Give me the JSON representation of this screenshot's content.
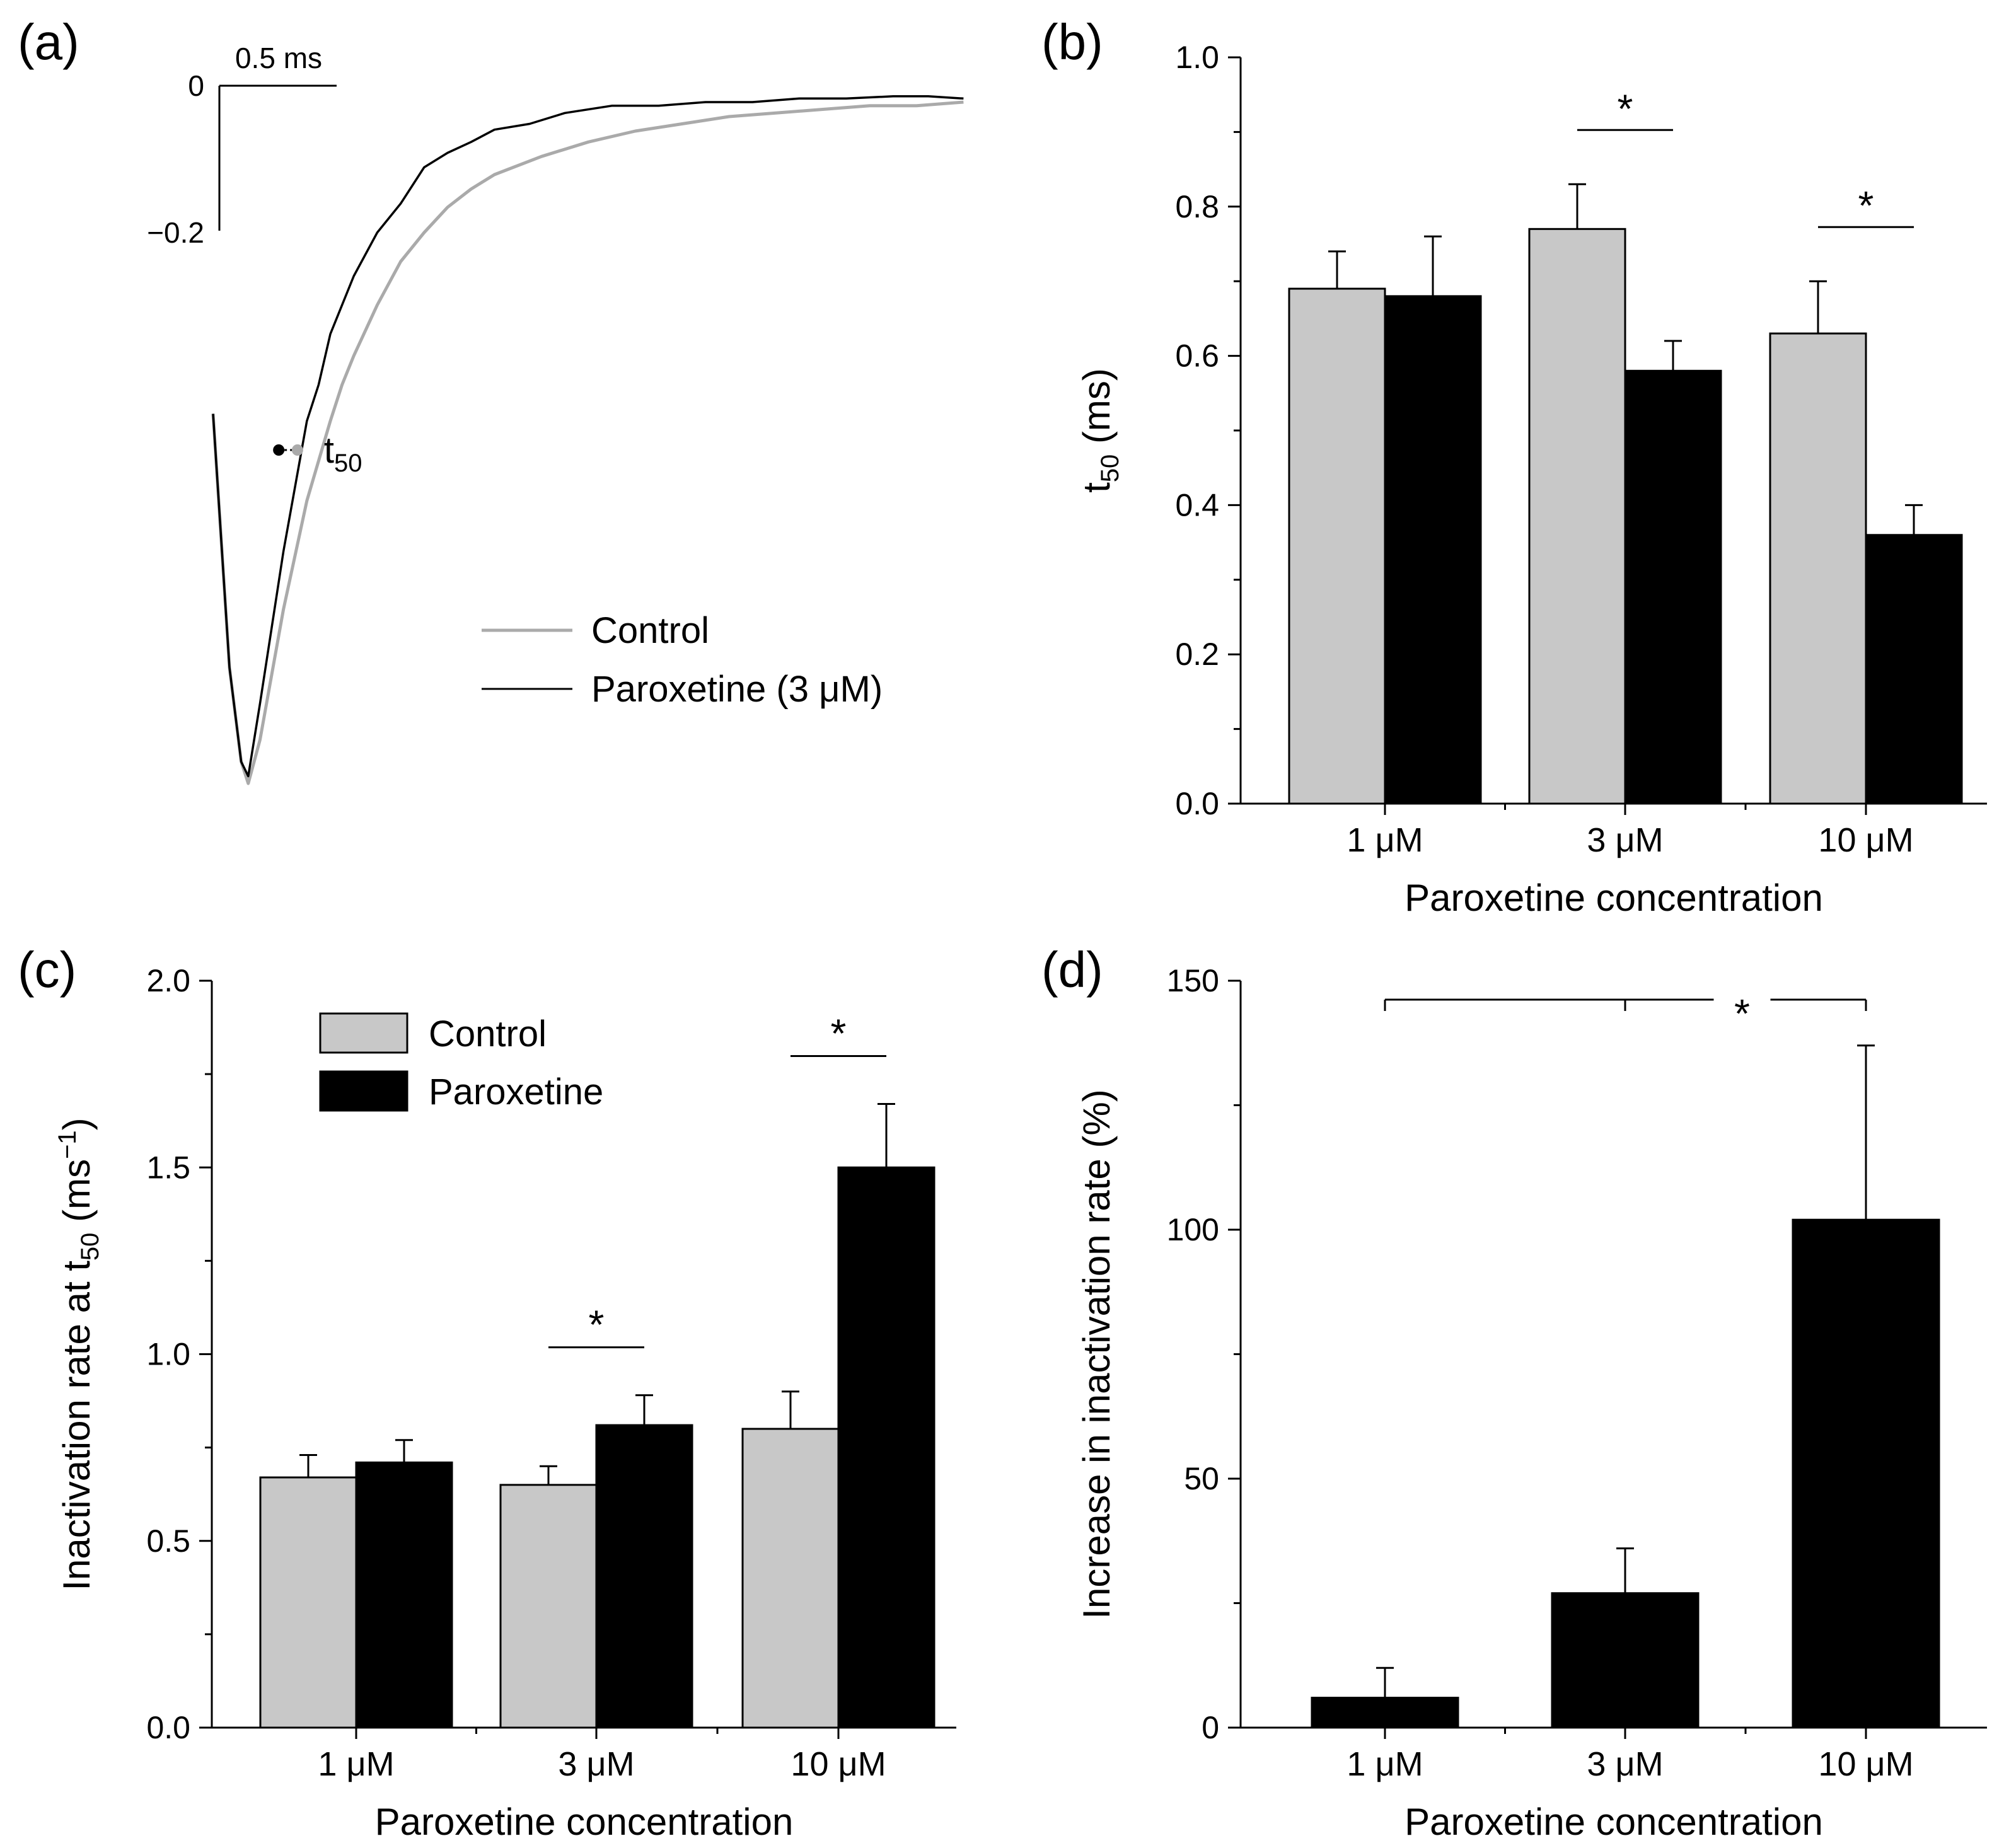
{
  "colors": {
    "control": "#c8c8c8",
    "paroxetine": "#000000"
  },
  "chart_data": [
    {
      "id": "a",
      "panel_label": "(a)",
      "type": "line",
      "title": "",
      "scale_bar": {
        "time_label": "0.5 ms",
        "zero_label": "0",
        "amp_label": "−0.2"
      },
      "annotation": {
        "main": "t",
        "sub": "50"
      },
      "legend": [
        "Control",
        "Paroxetine (3 μM)"
      ],
      "legend_placement": "center-right",
      "units": {
        "x": "ms",
        "y": "normalized current"
      },
      "xlim": [
        0,
        3.2
      ],
      "ylim": [
        -1.0,
        0.0
      ],
      "series": [
        {
          "name": "Control",
          "color": "#aaaaaa",
          "x": [
            0,
            0.07,
            0.12,
            0.15,
            0.2,
            0.3,
            0.4,
            0.5,
            0.55,
            0.6,
            0.7,
            0.8,
            0.9,
            1.0,
            1.1,
            1.2,
            1.4,
            1.6,
            1.8,
            2.0,
            2.2,
            2.4,
            2.6,
            2.8,
            3.0,
            3.2
          ],
          "y": [
            -0.45,
            -0.8,
            -0.93,
            -0.96,
            -0.9,
            -0.72,
            -0.57,
            -0.46,
            -0.41,
            -0.37,
            -0.3,
            -0.24,
            -0.2,
            -0.165,
            -0.14,
            -0.12,
            -0.095,
            -0.075,
            -0.06,
            -0.05,
            -0.04,
            -0.035,
            -0.03,
            -0.025,
            -0.025,
            -0.02
          ]
        },
        {
          "name": "Paroxetine (3 μM)",
          "color": "#000000",
          "x": [
            0,
            0.07,
            0.12,
            0.15,
            0.2,
            0.3,
            0.4,
            0.45,
            0.5,
            0.6,
            0.7,
            0.8,
            0.9,
            1.0,
            1.1,
            1.2,
            1.35,
            1.5,
            1.7,
            1.9,
            2.1,
            2.3,
            2.5,
            2.7,
            2.9,
            3.05,
            3.2
          ],
          "y": [
            -0.45,
            -0.8,
            -0.93,
            -0.95,
            -0.85,
            -0.64,
            -0.46,
            -0.41,
            -0.34,
            -0.26,
            -0.2,
            -0.16,
            -0.11,
            -0.09,
            -0.075,
            -0.058,
            -0.05,
            -0.035,
            -0.025,
            -0.025,
            -0.02,
            -0.02,
            -0.015,
            -0.015,
            -0.012,
            -0.012,
            -0.015
          ]
        }
      ]
    },
    {
      "id": "b",
      "panel_label": "(b)",
      "type": "bar",
      "title": "",
      "categories": [
        "1 μM",
        "3 μM",
        "10 μM"
      ],
      "series": [
        {
          "name": "Control",
          "values": [
            0.69,
            0.77,
            0.63
          ],
          "errors": [
            0.05,
            0.06,
            0.07
          ]
        },
        {
          "name": "Paroxetine",
          "values": [
            0.68,
            0.58,
            0.36
          ],
          "errors": [
            0.08,
            0.04,
            0.04
          ]
        }
      ],
      "xlabel": "Paroxetine concentration",
      "ylabel": {
        "main": "t",
        "sub": "50",
        "rest": " (ms)"
      },
      "ylim": [
        0,
        1.0
      ],
      "yticks": [
        "0.0",
        "0.2",
        "0.4",
        "0.6",
        "0.8",
        "1.0"
      ],
      "significance": [
        {
          "category": 1,
          "label": "*"
        },
        {
          "category": 2,
          "label": "*"
        }
      ],
      "grid": false
    },
    {
      "id": "c",
      "panel_label": "(c)",
      "type": "bar",
      "title": "",
      "categories": [
        "1 μM",
        "3 μM",
        "10 μM"
      ],
      "series": [
        {
          "name": "Control",
          "values": [
            0.67,
            0.65,
            0.8
          ],
          "errors": [
            0.06,
            0.05,
            0.1
          ]
        },
        {
          "name": "Paroxetine",
          "values": [
            0.71,
            0.81,
            1.5
          ],
          "errors": [
            0.06,
            0.08,
            0.17
          ]
        }
      ],
      "xlabel": "Paroxetine concentration",
      "ylabel": {
        "main": "Inactivation rate at t",
        "sub": "50",
        "rest": " (ms",
        "sup": "−1",
        "close": ")"
      },
      "ylim": [
        0,
        2.0
      ],
      "yticks": [
        "0.0",
        "0.5",
        "1.0",
        "1.5",
        "2.0"
      ],
      "legend": [
        "Control",
        "Paroxetine"
      ],
      "legend_placement": "top-left",
      "significance": [
        {
          "category": 1,
          "label": "*"
        },
        {
          "category": 2,
          "label": "*"
        }
      ],
      "grid": false
    },
    {
      "id": "d",
      "panel_label": "(d)",
      "type": "bar",
      "title": "",
      "categories": [
        "1 μM",
        "3 μM",
        "10 μM"
      ],
      "series": [
        {
          "name": "Increase",
          "values": [
            6,
            27,
            102
          ],
          "errors": [
            6,
            9,
            35
          ]
        }
      ],
      "xlabel": "Paroxetine concentration",
      "ylabel": "Increase in inactivation rate (%)",
      "ylim": [
        0,
        150
      ],
      "yticks": [
        "0",
        "50",
        "100",
        "150"
      ],
      "significance": [
        {
          "from": 0,
          "to": 2,
          "label": "*"
        }
      ],
      "grid": false
    }
  ]
}
